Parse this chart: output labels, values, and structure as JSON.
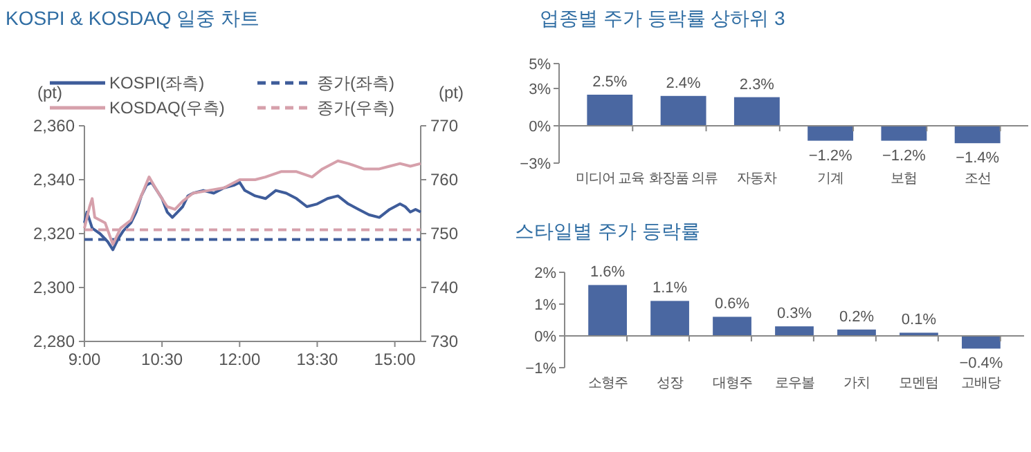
{
  "chart_data": [
    {
      "type": "line",
      "title": "KOSPI & KOSDAQ 일중 차트",
      "ylabel": "(pt)",
      "y2label": "(pt)",
      "legend": "top",
      "grid": false,
      "marker": "none",
      "xlim": [
        9,
        15.5
      ],
      "xticks": [
        {
          "value": 9,
          "label": "9:00"
        },
        {
          "value": 10.5,
          "label": "10:30"
        },
        {
          "value": 12,
          "label": "12:00"
        },
        {
          "value": 13.5,
          "label": "13:30"
        },
        {
          "value": 15,
          "label": "15:00"
        }
      ],
      "ylim": [
        2280,
        2360
      ],
      "yticks": [
        {
          "value": 2280,
          "label": "2,280"
        },
        {
          "value": 2300,
          "label": "2,300"
        },
        {
          "value": 2320,
          "label": "2,320"
        },
        {
          "value": 2340,
          "label": "2,340"
        },
        {
          "value": 2360,
          "label": "2,360"
        }
      ],
      "y2lim": [
        730,
        770
      ],
      "y2ticks": [
        730,
        740,
        750,
        760,
        770
      ],
      "series": [
        {
          "name": "KOSPI(좌측)",
          "color": "#3e5c9a",
          "line_style": "solid",
          "x": [
            9,
            9.05,
            9.1,
            9.15,
            9.3,
            9.45,
            9.55,
            9.65,
            9.75,
            9.9,
            10,
            10.1,
            10.2,
            10.3,
            10.4,
            10.5,
            10.6,
            10.7,
            10.8,
            10.9,
            11,
            11.1,
            11.3,
            11.5,
            11.7,
            11.9,
            12,
            12.1,
            12.3,
            12.5,
            12.7,
            12.9,
            13.1,
            13.3,
            13.5,
            13.7,
            13.9,
            14.1,
            14.3,
            14.5,
            14.7,
            14.9,
            15.1,
            15.2,
            15.3,
            15.4,
            15.5
          ],
          "values": [
            2324,
            2328,
            2325,
            2322,
            2320,
            2317,
            2314,
            2318,
            2321,
            2324,
            2328,
            2334,
            2338,
            2339,
            2336,
            2333,
            2328,
            2326,
            2328,
            2330,
            2334,
            2335,
            2336,
            2335,
            2337,
            2338,
            2339,
            2336,
            2334,
            2333,
            2336,
            2335,
            2333,
            2330,
            2331,
            2333,
            2334,
            2331,
            2329,
            2327,
            2326,
            2329,
            2331,
            2330,
            2328,
            2329,
            2328
          ]
        },
        {
          "name": "종가(좌측)",
          "color": "#3e5c9a",
          "line_style": "dashed",
          "x": [
            9,
            15.5
          ],
          "values": [
            2317.8,
            2317.8
          ]
        },
        {
          "name": "KOSDAQ(우측)",
          "color": "#d6a0ab",
          "line_style": "solid",
          "axis": "y2",
          "x": [
            9,
            9.1,
            9.15,
            9.2,
            9.4,
            9.55,
            9.7,
            9.9,
            10.1,
            10.25,
            10.4,
            10.6,
            10.75,
            10.9,
            11.1,
            11.4,
            11.7,
            12,
            12.3,
            12.5,
            12.8,
            13.1,
            13.4,
            13.6,
            13.9,
            14.1,
            14.4,
            14.7,
            14.9,
            15.1,
            15.3,
            15.5
          ],
          "values": [
            751,
            755,
            756.5,
            753,
            752,
            748,
            751,
            752.5,
            757,
            760.5,
            758,
            755,
            754.5,
            756,
            757.5,
            758,
            758.5,
            760,
            760,
            760.5,
            761.5,
            761.5,
            760.5,
            762,
            763.5,
            763,
            762,
            762,
            762.5,
            763,
            762.5,
            763
          ]
        },
        {
          "name": "종가(우측)",
          "color": "#d6a0ab",
          "line_style": "dashed",
          "axis": "y2",
          "x": [
            9,
            15.5
          ],
          "values": [
            750.7,
            750.7
          ]
        }
      ]
    },
    {
      "type": "bar",
      "title": "업종별 주가 등락률 상하위 3",
      "categories": [
        "미디어 교육",
        "화장품 의류",
        "자동차",
        "기계",
        "보험",
        "조선"
      ],
      "values": [
        2.5,
        2.4,
        2.3,
        -1.2,
        -1.2,
        -1.4
      ],
      "value_labels": [
        "2.5%",
        "2.4%",
        "2.3%",
        "−1.2%",
        "−1.2%",
        "−1.4%"
      ],
      "color": "#4a67a1",
      "ylim": [
        -3,
        5
      ],
      "yticks": [
        {
          "value": -3,
          "label": "−3%"
        },
        {
          "value": 0,
          "label": "0%"
        },
        {
          "value": 3,
          "label": "3%"
        },
        {
          "value": 5,
          "label": "5%"
        }
      ]
    },
    {
      "type": "bar",
      "title": "스타일별 주가 등락률",
      "categories": [
        "소형주",
        "성장",
        "대형주",
        "로우볼",
        "가치",
        "모멘텀",
        "고배당"
      ],
      "values": [
        1.6,
        1.1,
        0.6,
        0.3,
        0.2,
        0.1,
        -0.4
      ],
      "value_labels": [
        "1.6%",
        "1.1%",
        "0.6%",
        "0.3%",
        "0.2%",
        "0.1%",
        "−0.4%"
      ],
      "color": "#4a67a1",
      "ylim": [
        -1,
        2
      ],
      "yticks": [
        {
          "value": -1,
          "label": "−1%"
        },
        {
          "value": 0,
          "label": "0%"
        },
        {
          "value": 1,
          "label": "1%"
        },
        {
          "value": 2,
          "label": "2%"
        }
      ]
    }
  ]
}
